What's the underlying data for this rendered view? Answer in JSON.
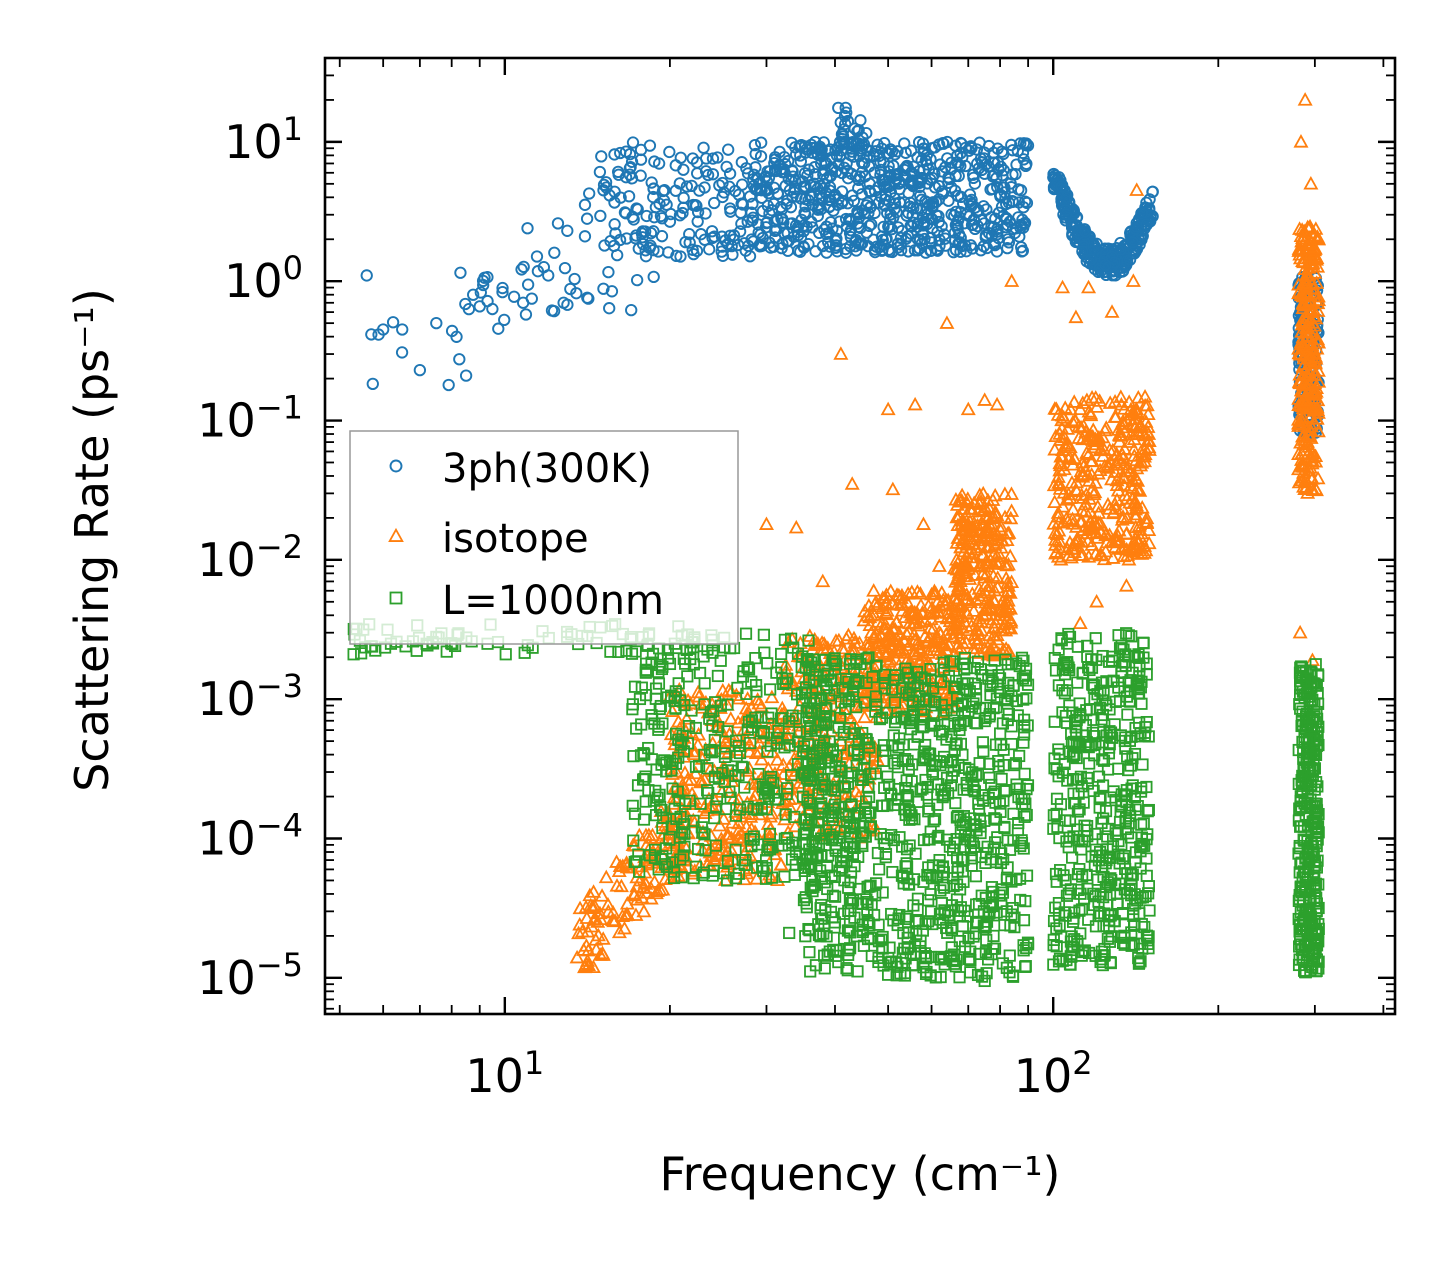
{
  "chart_data": {
    "type": "scatter",
    "title": "",
    "xlabel": "Frequency (cm⁻¹)",
    "ylabel": "Scattering Rate (ps⁻¹)",
    "xscale": "log",
    "yscale": "log",
    "xlim": [
      4.7,
      420
    ],
    "ylim": [
      5.5e-06,
      40
    ],
    "x_tick_labels": [
      {
        "value": 10,
        "base": "10",
        "exp": "1"
      },
      {
        "value": 100,
        "base": "10",
        "exp": "2"
      }
    ],
    "y_tick_labels": [
      {
        "value": 10,
        "base": "10",
        "exp": "1"
      },
      {
        "value": 1,
        "base": "10",
        "exp": "0"
      },
      {
        "value": 0.1,
        "base": "10",
        "exp": "−1"
      },
      {
        "value": 0.01,
        "base": "10",
        "exp": "−2"
      },
      {
        "value": 0.001,
        "base": "10",
        "exp": "−3"
      },
      {
        "value": 0.0001,
        "base": "10",
        "exp": "−4"
      },
      {
        "value": 1e-05,
        "base": "10",
        "exp": "−5"
      }
    ],
    "legend_position": "center-left",
    "series": [
      {
        "name": "3ph(300K)",
        "marker": "circle",
        "color": "#1f77b4",
        "clusters": [
          {
            "xmin": 5.6,
            "xmax": 19.5,
            "ymin": 0.18,
            "ymax": 3.0,
            "count": 45,
            "trend": "rising"
          },
          {
            "xmin": 14,
            "xmax": 28,
            "ymin": 1.5,
            "ymax": 10,
            "count": 160
          },
          {
            "xmin": 28,
            "xmax": 90,
            "ymin": 1.6,
            "ymax": 10,
            "count": 700
          },
          {
            "xmin": 40,
            "xmax": 46,
            "ymin": 8,
            "ymax": 18,
            "count": 25
          },
          {
            "xmin": 100,
            "xmax": 152,
            "ymin": 1.1,
            "ymax": 6,
            "count": 300,
            "trend": "dip"
          },
          {
            "xmin": 280,
            "xmax": 305,
            "ymin": 0.08,
            "ymax": 1.1,
            "count": 160
          }
        ],
        "points": [
          [
            5.6,
            1.1
          ],
          [
            6.0,
            0.45
          ],
          [
            6.5,
            0.45
          ],
          [
            7.0,
            0.23
          ],
          [
            7.5,
            0.5
          ],
          [
            7.9,
            0.18
          ],
          [
            8.3,
            1.15
          ],
          [
            8.5,
            0.21
          ],
          [
            8.6,
            0.63
          ],
          [
            9.0,
            0.66
          ],
          [
            9.3,
            0.72
          ],
          [
            10.8,
            0.7
          ],
          [
            11.2,
            0.75
          ],
          [
            12.3,
            0.61
          ],
          [
            12.8,
            0.7
          ],
          [
            13.5,
            0.82
          ],
          [
            14.2,
            0.75
          ],
          [
            15.5,
            0.64
          ],
          [
            17.0,
            0.62
          ],
          [
            11.0,
            2.4
          ],
          [
            12.0,
            1.1
          ],
          [
            12.5,
            2.6
          ],
          [
            13.0,
            2.3
          ],
          [
            14.0,
            2.1
          ]
        ]
      },
      {
        "name": "isotope",
        "marker": "triangle",
        "color": "#ff7f0e",
        "clusters": [
          {
            "xmin": 13.5,
            "xmax": 22,
            "ymin": 1e-05,
            "ymax": 0.00025,
            "count": 150,
            "trend": "rising"
          },
          {
            "xmin": 20,
            "xmax": 32,
            "ymin": 5e-05,
            "ymax": 0.0012,
            "count": 250
          },
          {
            "xmin": 32,
            "xmax": 48,
            "ymin": 0.0001,
            "ymax": 0.003,
            "count": 250
          },
          {
            "xmin": 45,
            "xmax": 66,
            "ymin": 0.0008,
            "ymax": 0.006,
            "count": 300
          },
          {
            "xmin": 66,
            "xmax": 84,
            "ymin": 0.002,
            "ymax": 0.03,
            "count": 300
          },
          {
            "xmin": 100,
            "xmax": 150,
            "ymin": 0.01,
            "ymax": 0.15,
            "count": 350
          },
          {
            "xmin": 280,
            "xmax": 305,
            "ymin": 0.03,
            "ymax": 2.5,
            "count": 260
          }
        ],
        "points": [
          [
            41,
            0.3
          ],
          [
            50,
            0.12
          ],
          [
            56,
            0.13
          ],
          [
            64,
            0.5
          ],
          [
            70,
            0.12
          ],
          [
            75,
            0.14
          ],
          [
            79,
            0.13
          ],
          [
            84,
            1.0
          ],
          [
            104,
            0.9
          ],
          [
            110,
            0.55
          ],
          [
            116,
            0.9
          ],
          [
            128,
            0.6
          ],
          [
            140,
            1.0
          ],
          [
            142,
            4.5
          ],
          [
            288,
            20
          ],
          [
            283,
            10
          ],
          [
            295,
            5
          ],
          [
            30,
            0.018
          ],
          [
            34,
            0.017
          ],
          [
            38,
            0.007
          ],
          [
            43,
            0.035
          ],
          [
            51,
            0.032
          ],
          [
            58,
            0.018
          ],
          [
            62,
            0.009
          ],
          [
            112,
            0.0035
          ],
          [
            120,
            0.005
          ],
          [
            136,
            0.0065
          ],
          [
            282,
            0.003
          ],
          [
            297,
            0.0019
          ],
          [
            292,
            0.0012
          ]
        ]
      },
      {
        "name": "L=1000nm",
        "marker": "square",
        "color": "#2ca02c",
        "clusters": [
          {
            "xmin": 5.2,
            "xmax": 24,
            "ymin": 0.0021,
            "ymax": 0.0035,
            "count": 70
          },
          {
            "xmin": 17,
            "xmax": 40,
            "ymin": 5e-05,
            "ymax": 0.003,
            "count": 400
          },
          {
            "xmin": 35,
            "xmax": 90,
            "ymin": 1e-05,
            "ymax": 0.002,
            "count": 900
          },
          {
            "xmin": 100,
            "xmax": 150,
            "ymin": 1.2e-05,
            "ymax": 0.003,
            "count": 450
          },
          {
            "xmin": 280,
            "xmax": 305,
            "ymin": 1e-05,
            "ymax": 0.0018,
            "count": 320
          }
        ],
        "points": [
          [
            5.3,
            0.0021
          ],
          [
            5.7,
            0.0024
          ],
          [
            6.2,
            0.0025
          ],
          [
            6.8,
            0.0026
          ],
          [
            7.5,
            0.0028
          ],
          [
            8.2,
            0.0029
          ],
          [
            8.7,
            0.0026
          ],
          [
            9.3,
            0.0025
          ],
          [
            33,
            2.1e-05
          ],
          [
            40,
            2.5e-05
          ],
          [
            45,
            2.2e-05
          ],
          [
            48,
            1.3e-05
          ],
          [
            52,
            1.2e-05
          ],
          [
            55,
            1.5e-05
          ],
          [
            75,
            9.5e-06
          ],
          [
            122,
            1.3e-05
          ],
          [
            288,
            1.1e-05
          ]
        ]
      }
    ]
  }
}
